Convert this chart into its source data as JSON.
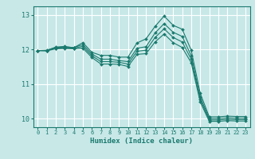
{
  "xlabel": "Humidex (Indice chaleur)",
  "bg_color": "#c8e8e8",
  "grid_color": "#ffffff",
  "line_color": "#1a7a6e",
  "marker_color": "#1a7a6e",
  "xlim": [
    -0.5,
    23.5
  ],
  "ylim": [
    9.75,
    13.25
  ],
  "yticks": [
    10,
    11,
    12,
    13
  ],
  "xticks": [
    0,
    1,
    2,
    3,
    4,
    5,
    6,
    7,
    8,
    9,
    10,
    11,
    12,
    13,
    14,
    15,
    16,
    17,
    18,
    19,
    20,
    21,
    22,
    23
  ],
  "series": [
    [
      11.97,
      11.97,
      12.07,
      12.09,
      12.05,
      12.2,
      11.92,
      11.83,
      11.83,
      11.78,
      11.78,
      12.19,
      12.31,
      12.67,
      12.97,
      12.7,
      12.59,
      11.98,
      10.73,
      10.05,
      10.05,
      10.07,
      10.06,
      10.06
    ],
    [
      11.97,
      11.98,
      12.06,
      12.07,
      12.06,
      12.14,
      11.87,
      11.72,
      11.72,
      11.68,
      11.65,
      12.04,
      12.08,
      12.48,
      12.75,
      12.5,
      12.38,
      11.82,
      10.62,
      10.0,
      10.0,
      10.02,
      10.01,
      10.01
    ],
    [
      11.97,
      11.97,
      12.04,
      12.05,
      12.04,
      12.09,
      11.82,
      11.65,
      11.65,
      11.63,
      11.58,
      11.95,
      11.98,
      12.35,
      12.6,
      12.35,
      12.22,
      11.72,
      10.55,
      9.96,
      9.96,
      9.98,
      9.97,
      9.97
    ],
    [
      11.97,
      11.96,
      12.02,
      12.03,
      12.02,
      12.04,
      11.77,
      11.58,
      11.58,
      11.57,
      11.51,
      11.86,
      11.88,
      12.22,
      12.45,
      12.2,
      12.06,
      11.62,
      10.48,
      9.92,
      9.92,
      9.94,
      9.93,
      9.93
    ]
  ]
}
